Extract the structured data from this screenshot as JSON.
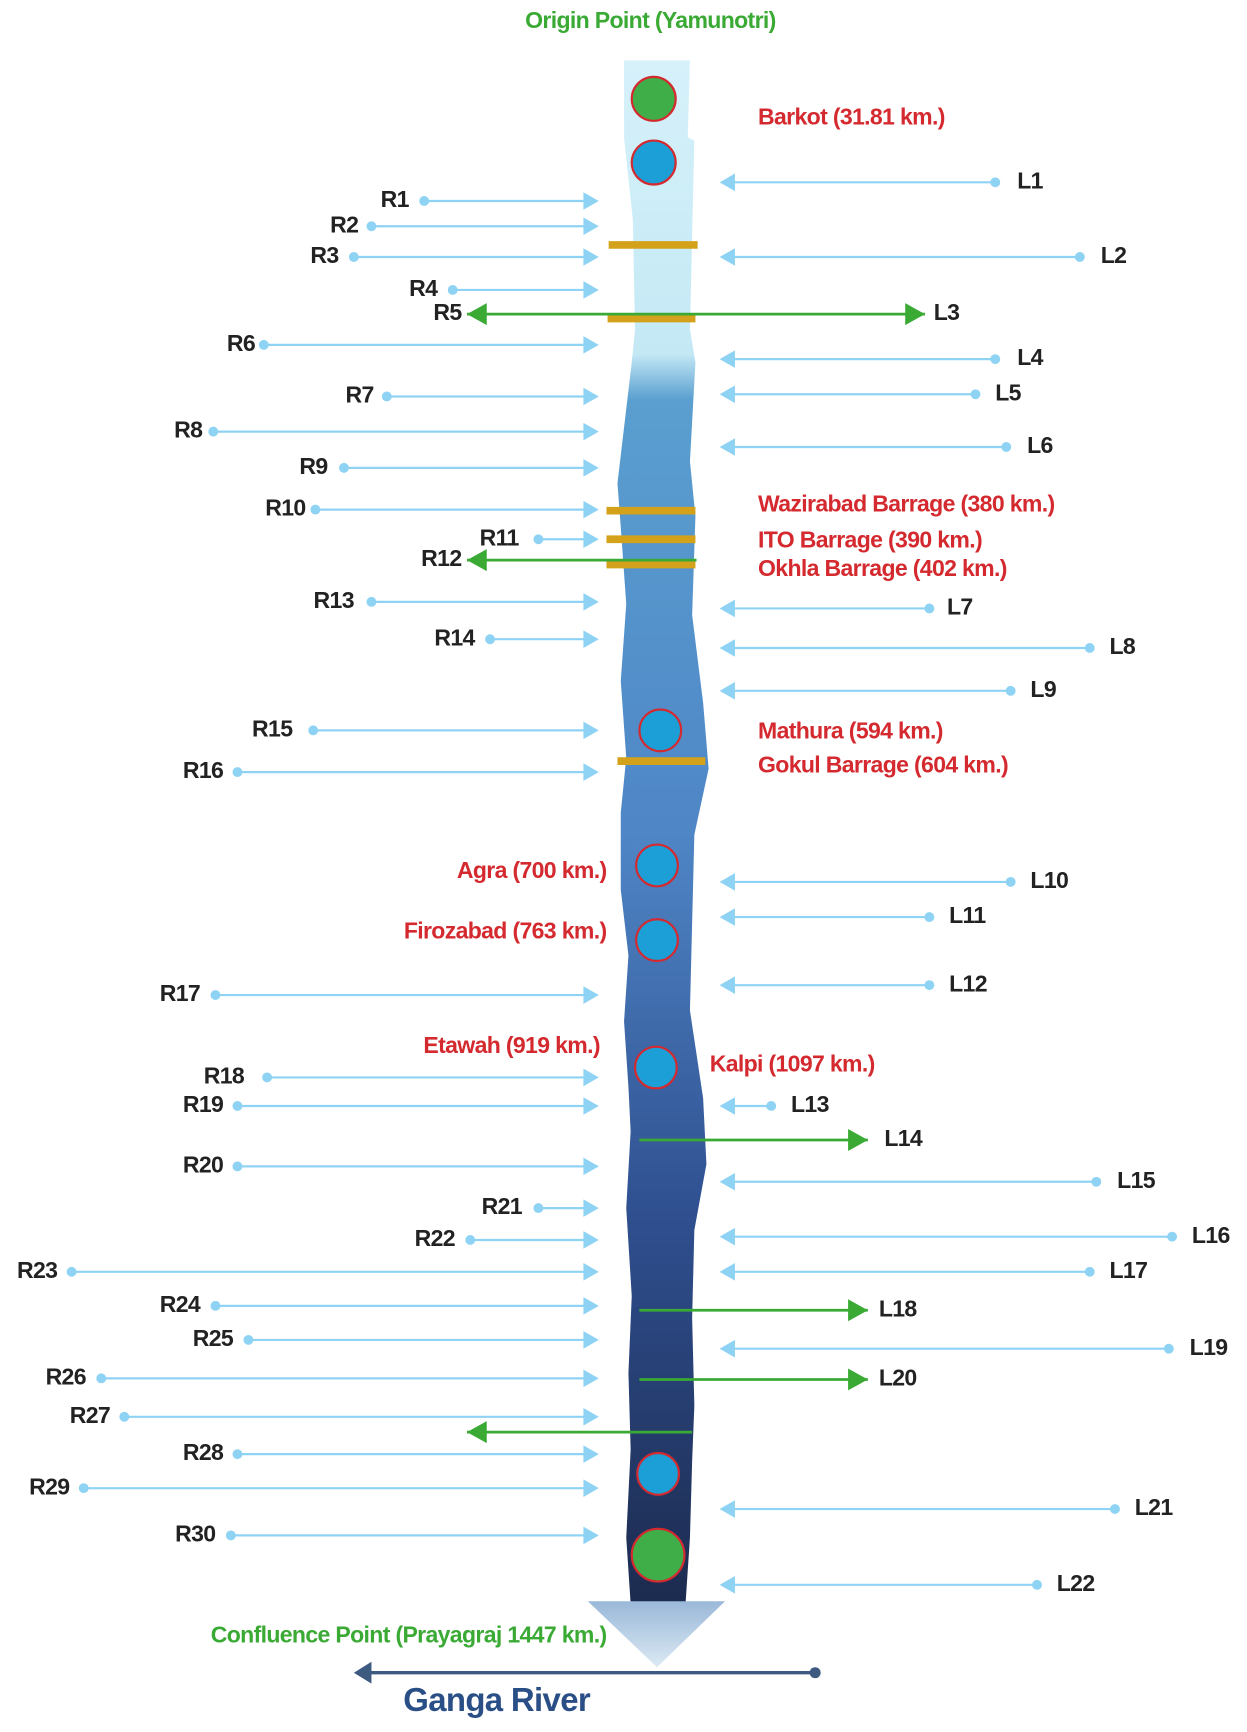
{
  "origin": "Origin Point (Yamunotri)",
  "confluence": "Confluence Point (Prayagraj 1447 km.)",
  "river": "Ganga River",
  "places": [
    "Barkot (31.81 km.)",
    "Wazirabad Barrage (380 km.)",
    "ITO Barrage (390 km.)",
    "Okhla Barrage (402 km.)",
    "Mathura (594 km.)",
    "Gokul Barrage (604 km.)",
    "Agra (700 km.)",
    "Firozabad (763 km.)",
    "Etawah (919 km.)",
    "Kalpi (1097 km.)"
  ],
  "right_tributaries": [
    "R1",
    "R2",
    "R3",
    "R4",
    "R5",
    "R6",
    "R7",
    "R8",
    "R9",
    "R10",
    "R11",
    "R12",
    "R13",
    "R14",
    "R15",
    "R16",
    "R17",
    "R18",
    "R19",
    "R20",
    "R21",
    "R22",
    "R23",
    "R24",
    "R25",
    "R26",
    "R27",
    "R28",
    "R29",
    "R30"
  ],
  "left_tributaries": [
    "L1",
    "L2",
    "L3",
    "L4",
    "L5",
    "L6",
    "L7",
    "L8",
    "L9",
    "L10",
    "L11",
    "L12",
    "L13",
    "L14",
    "L15",
    "L16",
    "L17",
    "L18",
    "L19",
    "L20",
    "L21",
    "L22"
  ]
}
